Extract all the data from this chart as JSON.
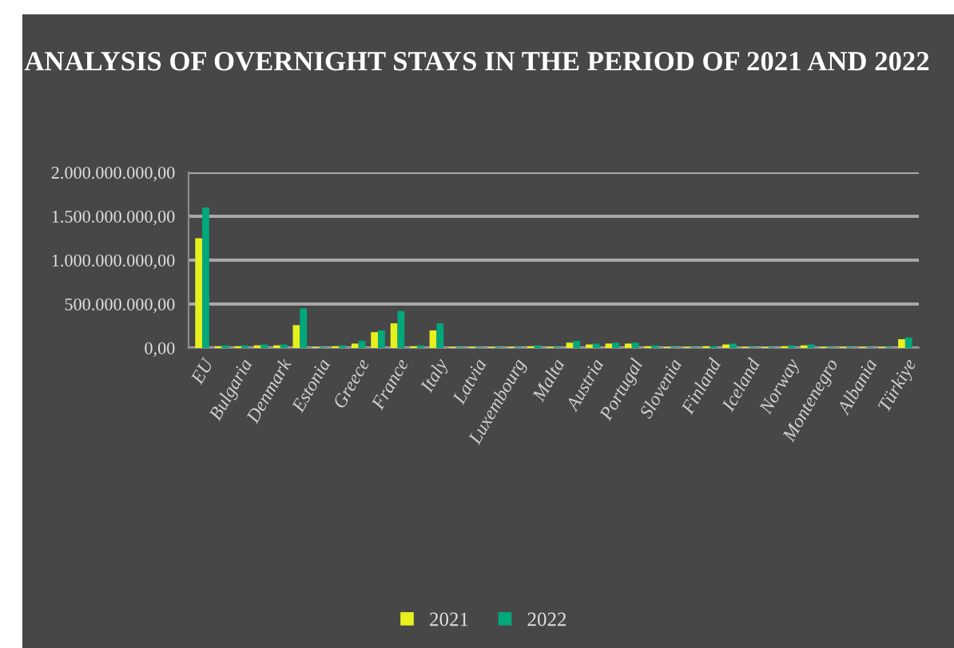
{
  "chart_data": {
    "type": "bar",
    "title": "ANALYSIS OF OVERNIGHT STAYS IN THE PERIOD OF 2021 AND 2022",
    "categories": [
      "EU",
      null,
      "Bulgaria",
      null,
      "Denmark",
      null,
      "Estonia",
      null,
      "Greece",
      null,
      "France",
      null,
      "Italy",
      null,
      "Latvia",
      null,
      "Luxembourg",
      null,
      "Malta",
      null,
      "Austria",
      null,
      "Portugal",
      null,
      "Slovenia",
      null,
      "Finland",
      null,
      "Iceland",
      null,
      "Norway",
      null,
      "Montenegro",
      null,
      "Albania",
      null,
      "Türkiye"
    ],
    "series": [
      {
        "name": "2021",
        "color": "#e6f01e",
        "values": [
          1250000000,
          20000000,
          20000000,
          30000000,
          30000000,
          260000000,
          10000000,
          20000000,
          50000000,
          180000000,
          280000000,
          20000000,
          200000000,
          10000000,
          10000000,
          10000000,
          10000000,
          20000000,
          10000000,
          60000000,
          40000000,
          50000000,
          50000000,
          20000000,
          10000000,
          10000000,
          20000000,
          40000000,
          10000000,
          10000000,
          20000000,
          30000000,
          10000000,
          10000000,
          10000000,
          10000000,
          100000000
        ]
      },
      {
        "name": "2022",
        "color": "#00a87a",
        "values": [
          1600000000,
          30000000,
          30000000,
          40000000,
          40000000,
          450000000,
          10000000,
          30000000,
          80000000,
          200000000,
          420000000,
          30000000,
          280000000,
          10000000,
          10000000,
          10000000,
          10000000,
          30000000,
          10000000,
          80000000,
          50000000,
          60000000,
          60000000,
          30000000,
          10000000,
          10000000,
          20000000,
          50000000,
          10000000,
          10000000,
          30000000,
          40000000,
          10000000,
          10000000,
          10000000,
          10000000,
          120000000
        ]
      }
    ],
    "ylim": [
      0,
      2000000000
    ],
    "yticks": [
      {
        "value": 0,
        "label": "0,00"
      },
      {
        "value": 500000000,
        "label": "500.000.000,00"
      },
      {
        "value": 1000000000,
        "label": "1.000.000.000,00"
      },
      {
        "value": 1500000000,
        "label": "1.500.000.000,00"
      },
      {
        "value": 2000000000,
        "label": "2.000.000.000,00"
      }
    ],
    "grid": "y",
    "legend": "bottom"
  }
}
